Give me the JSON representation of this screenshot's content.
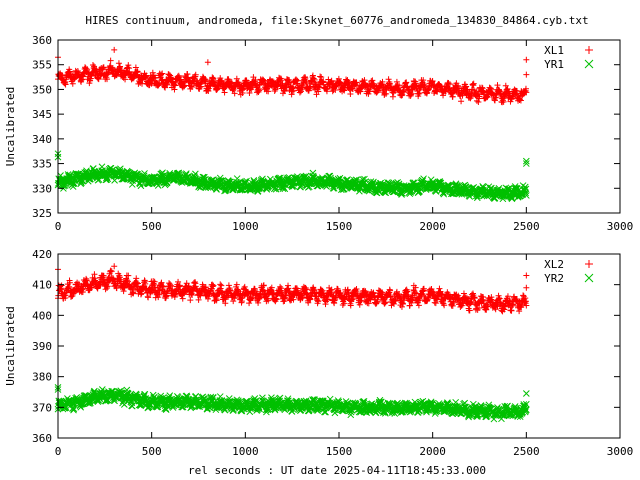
{
  "figure": {
    "title": "HIRES continuum, andromeda, file:Skynet_60776_andromeda_134830_84864.cyb.txt",
    "xlabel": "rel seconds : UT date 2025-04-11T18:45:33.000"
  },
  "chart_data": [
    {
      "type": "scatter",
      "ylabel": "Uncalibrated",
      "xlim": [
        0,
        3000
      ],
      "ylim": [
        325,
        360
      ],
      "xticks": [
        0,
        500,
        1000,
        1500,
        2000,
        2500,
        3000
      ],
      "yticks": [
        325,
        330,
        335,
        340,
        345,
        350,
        355,
        360
      ],
      "legend_position": "top-right",
      "grid": false,
      "series": [
        {
          "name": "XL1",
          "marker": "plus",
          "color": "#ff0000",
          "x": [
            0,
            50,
            100,
            150,
            200,
            250,
            300,
            350,
            400,
            450,
            500,
            550,
            600,
            650,
            700,
            750,
            800,
            850,
            900,
            950,
            1000,
            1050,
            1100,
            1150,
            1200,
            1250,
            1300,
            1350,
            1400,
            1450,
            1500,
            1550,
            1600,
            1650,
            1700,
            1750,
            1800,
            1850,
            1900,
            1950,
            2000,
            2050,
            2100,
            2150,
            2200,
            2250,
            2300,
            2350,
            2400,
            2450,
            2500
          ],
          "y": [
            352.0,
            352.5,
            352.8,
            353.0,
            353.3,
            353.5,
            353.8,
            353.3,
            352.8,
            352.3,
            352.0,
            351.8,
            351.6,
            351.6,
            351.7,
            351.5,
            351.2,
            351.0,
            350.8,
            350.7,
            350.8,
            350.9,
            351.0,
            351.0,
            350.9,
            350.8,
            350.9,
            351.0,
            350.9,
            350.8,
            350.8,
            350.6,
            350.5,
            350.4,
            350.3,
            350.2,
            350.1,
            350.0,
            350.2,
            350.5,
            350.6,
            350.2,
            349.9,
            349.6,
            349.4,
            349.2,
            349.1,
            349.0,
            349.0,
            349.0,
            349.2
          ],
          "spread": 1.8,
          "outliers": [
            {
              "x": 0,
              "y": 356.5
            },
            {
              "x": 300,
              "y": 358.0
            },
            {
              "x": 800,
              "y": 355.5
            },
            {
              "x": 2500,
              "y": 356.0
            },
            {
              "x": 2500,
              "y": 353.0
            }
          ]
        },
        {
          "name": "YR1",
          "marker": "x",
          "color": "#00c000",
          "x": [
            0,
            50,
            100,
            150,
            200,
            250,
            300,
            350,
            400,
            450,
            500,
            550,
            600,
            650,
            700,
            750,
            800,
            850,
            900,
            950,
            1000,
            1050,
            1100,
            1150,
            1200,
            1250,
            1300,
            1350,
            1400,
            1450,
            1500,
            1550,
            1600,
            1650,
            1700,
            1750,
            1800,
            1850,
            1900,
            1950,
            2000,
            2050,
            2100,
            2150,
            2200,
            2250,
            2300,
            2350,
            2400,
            2450,
            2500
          ],
          "y": [
            331.0,
            331.5,
            332.0,
            332.5,
            332.8,
            333.0,
            333.2,
            332.8,
            332.3,
            331.8,
            331.5,
            331.8,
            332.0,
            332.2,
            331.8,
            331.3,
            331.0,
            330.8,
            330.6,
            330.5,
            330.4,
            330.5,
            330.7,
            330.9,
            331.0,
            331.2,
            331.5,
            331.6,
            331.4,
            331.2,
            331.0,
            330.8,
            330.6,
            330.4,
            330.3,
            330.2,
            330.1,
            330.0,
            330.2,
            330.5,
            330.6,
            330.2,
            329.9,
            329.6,
            329.4,
            329.2,
            329.0,
            328.9,
            328.9,
            329.0,
            329.2
          ],
          "spread": 1.4,
          "outliers": [
            {
              "x": 0,
              "y": 337.0
            },
            {
              "x": 0,
              "y": 336.3
            },
            {
              "x": 2500,
              "y": 335.5
            },
            {
              "x": 2500,
              "y": 335.0
            }
          ]
        }
      ]
    },
    {
      "type": "scatter",
      "ylabel": "Uncalibrated",
      "xlim": [
        0,
        3000
      ],
      "ylim": [
        360,
        420
      ],
      "xticks": [
        0,
        500,
        1000,
        1500,
        2000,
        2500,
        3000
      ],
      "yticks": [
        360,
        370,
        380,
        390,
        400,
        410,
        420
      ],
      "legend_position": "top-right",
      "grid": false,
      "series": [
        {
          "name": "XL2",
          "marker": "plus",
          "color": "#ff0000",
          "x": [
            0,
            50,
            100,
            150,
            200,
            250,
            300,
            350,
            400,
            450,
            500,
            550,
            600,
            650,
            700,
            750,
            800,
            850,
            900,
            950,
            1000,
            1050,
            1100,
            1150,
            1200,
            1250,
            1300,
            1350,
            1400,
            1450,
            1500,
            1550,
            1600,
            1650,
            1700,
            1750,
            1800,
            1850,
            1900,
            1950,
            2000,
            2050,
            2100,
            2150,
            2200,
            2250,
            2300,
            2350,
            2400,
            2450,
            2500
          ],
          "y": [
            407.5,
            408.0,
            408.5,
            409.5,
            410.5,
            411.0,
            411.5,
            410.5,
            409.5,
            409.0,
            408.5,
            408.3,
            408.0,
            408.0,
            408.2,
            408.0,
            407.6,
            407.3,
            407.0,
            406.8,
            406.8,
            406.9,
            407.0,
            407.0,
            406.9,
            406.8,
            406.9,
            407.0,
            406.8,
            406.6,
            406.5,
            406.3,
            406.2,
            406.0,
            405.9,
            405.8,
            405.8,
            405.9,
            406.0,
            406.3,
            406.5,
            406.0,
            405.5,
            405.0,
            404.6,
            404.3,
            404.0,
            403.8,
            403.8,
            404.0,
            404.3
          ],
          "spread": 3.2,
          "outliers": [
            {
              "x": 0,
              "y": 415.0
            },
            {
              "x": 300,
              "y": 416.0
            },
            {
              "x": 2500,
              "y": 413.0
            },
            {
              "x": 2500,
              "y": 409.0
            }
          ]
        },
        {
          "name": "YR2",
          "marker": "x",
          "color": "#00c000",
          "x": [
            0,
            50,
            100,
            150,
            200,
            250,
            300,
            350,
            400,
            450,
            500,
            550,
            600,
            650,
            700,
            750,
            800,
            850,
            900,
            950,
            1000,
            1050,
            1100,
            1150,
            1200,
            1250,
            1300,
            1350,
            1400,
            1450,
            1500,
            1550,
            1600,
            1650,
            1700,
            1750,
            1800,
            1850,
            1900,
            1950,
            2000,
            2050,
            2100,
            2150,
            2200,
            2250,
            2300,
            2350,
            2400,
            2450,
            2500
          ],
          "y": [
            370.5,
            371.0,
            371.8,
            372.5,
            373.2,
            373.8,
            374.0,
            373.5,
            372.8,
            372.2,
            371.8,
            371.6,
            371.5,
            371.6,
            371.8,
            371.6,
            371.3,
            371.0,
            370.8,
            370.7,
            370.6,
            370.7,
            370.8,
            370.8,
            370.8,
            370.7,
            370.7,
            370.8,
            370.6,
            370.4,
            370.3,
            370.2,
            370.1,
            370.0,
            369.9,
            369.8,
            369.8,
            369.9,
            370.0,
            370.2,
            370.2,
            369.8,
            369.5,
            369.2,
            369.0,
            368.8,
            368.6,
            368.5,
            368.5,
            368.6,
            368.8
          ],
          "spread": 2.4,
          "outliers": [
            {
              "x": 0,
              "y": 376.5
            },
            {
              "x": 0,
              "y": 375.8
            },
            {
              "x": 2500,
              "y": 374.5
            },
            {
              "x": 2500,
              "y": 371.0
            }
          ]
        }
      ]
    }
  ]
}
